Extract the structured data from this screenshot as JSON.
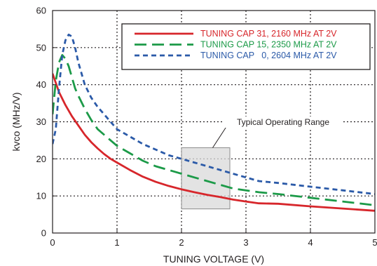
{
  "chart_data": {
    "type": "line",
    "xlabel": "TUNING VOLTAGE (V)",
    "ylabel": "kvco (MHz/V)",
    "xlim": [
      0,
      5
    ],
    "ylim": [
      0,
      60
    ],
    "x_ticks": [
      "0",
      "1",
      "2",
      "3",
      "4",
      "5"
    ],
    "y_ticks": [
      "0",
      "10",
      "20",
      "30",
      "40",
      "50",
      "60"
    ],
    "grid": true,
    "legend_position": "top-right",
    "series": [
      {
        "name": "TUNING CAP 31, 2160 MHz AT 2V",
        "color": "#d7262b",
        "dash": "solid",
        "x": [
          0.0,
          0.1,
          0.2,
          0.3,
          0.4,
          0.5,
          0.6,
          0.7,
          0.8,
          0.9,
          1.0,
          1.2,
          1.4,
          1.6,
          1.8,
          2.0,
          2.2,
          2.4,
          2.6,
          2.8,
          3.0,
          3.2,
          3.5,
          4.0,
          4.5,
          5.0
        ],
        "y": [
          43,
          38,
          34.5,
          31.5,
          29,
          26.5,
          24.5,
          22.8,
          21.3,
          20,
          19,
          17,
          15.2,
          13.8,
          12.7,
          11.8,
          11,
          10.3,
          9.7,
          9,
          8.5,
          8,
          7.9,
          7.2,
          6.6,
          6
        ]
      },
      {
        "name": "TUNING CAP 15, 2350 MHz AT 2V",
        "color": "#1c9a48",
        "dash": "long",
        "x": [
          0.0,
          0.05,
          0.1,
          0.15,
          0.2,
          0.25,
          0.3,
          0.35,
          0.4,
          0.5,
          0.6,
          0.7,
          0.8,
          1.0,
          1.2,
          1.4,
          1.6,
          1.8,
          2.0,
          2.2,
          2.5,
          2.8,
          3.0,
          3.2,
          3.5,
          4.0,
          4.5,
          5.0
        ],
        "y": [
          32,
          41,
          46,
          48,
          47,
          45,
          42,
          39,
          37,
          33.5,
          30.5,
          28,
          26.5,
          23.5,
          21.5,
          19.5,
          18,
          17,
          16,
          15,
          13.5,
          12,
          11.5,
          11,
          10.5,
          9.5,
          8.5,
          7.5
        ]
      },
      {
        "name": "TUNING CAP   0, 2604 MHz AT 2V",
        "color": "#2b5aa8",
        "dash": "short",
        "x": [
          0.0,
          0.05,
          0.1,
          0.15,
          0.2,
          0.25,
          0.3,
          0.35,
          0.4,
          0.5,
          0.6,
          0.7,
          0.8,
          1.0,
          1.2,
          1.4,
          1.6,
          1.8,
          2.0,
          2.2,
          2.5,
          2.8,
          3.0,
          3.2,
          3.5,
          4.0,
          4.5,
          5.0
        ],
        "y": [
          24,
          28,
          39,
          48,
          52,
          53.5,
          53,
          50,
          46,
          40,
          36.5,
          34,
          32,
          28,
          26,
          24,
          22.5,
          21,
          20,
          19,
          17.5,
          16,
          15,
          14,
          13.5,
          12.5,
          11.5,
          10.5
        ]
      }
    ],
    "annotation": {
      "text": "Typical Operating Range",
      "x_range": [
        2.0,
        2.75
      ],
      "y_range": [
        6.5,
        23
      ]
    }
  }
}
